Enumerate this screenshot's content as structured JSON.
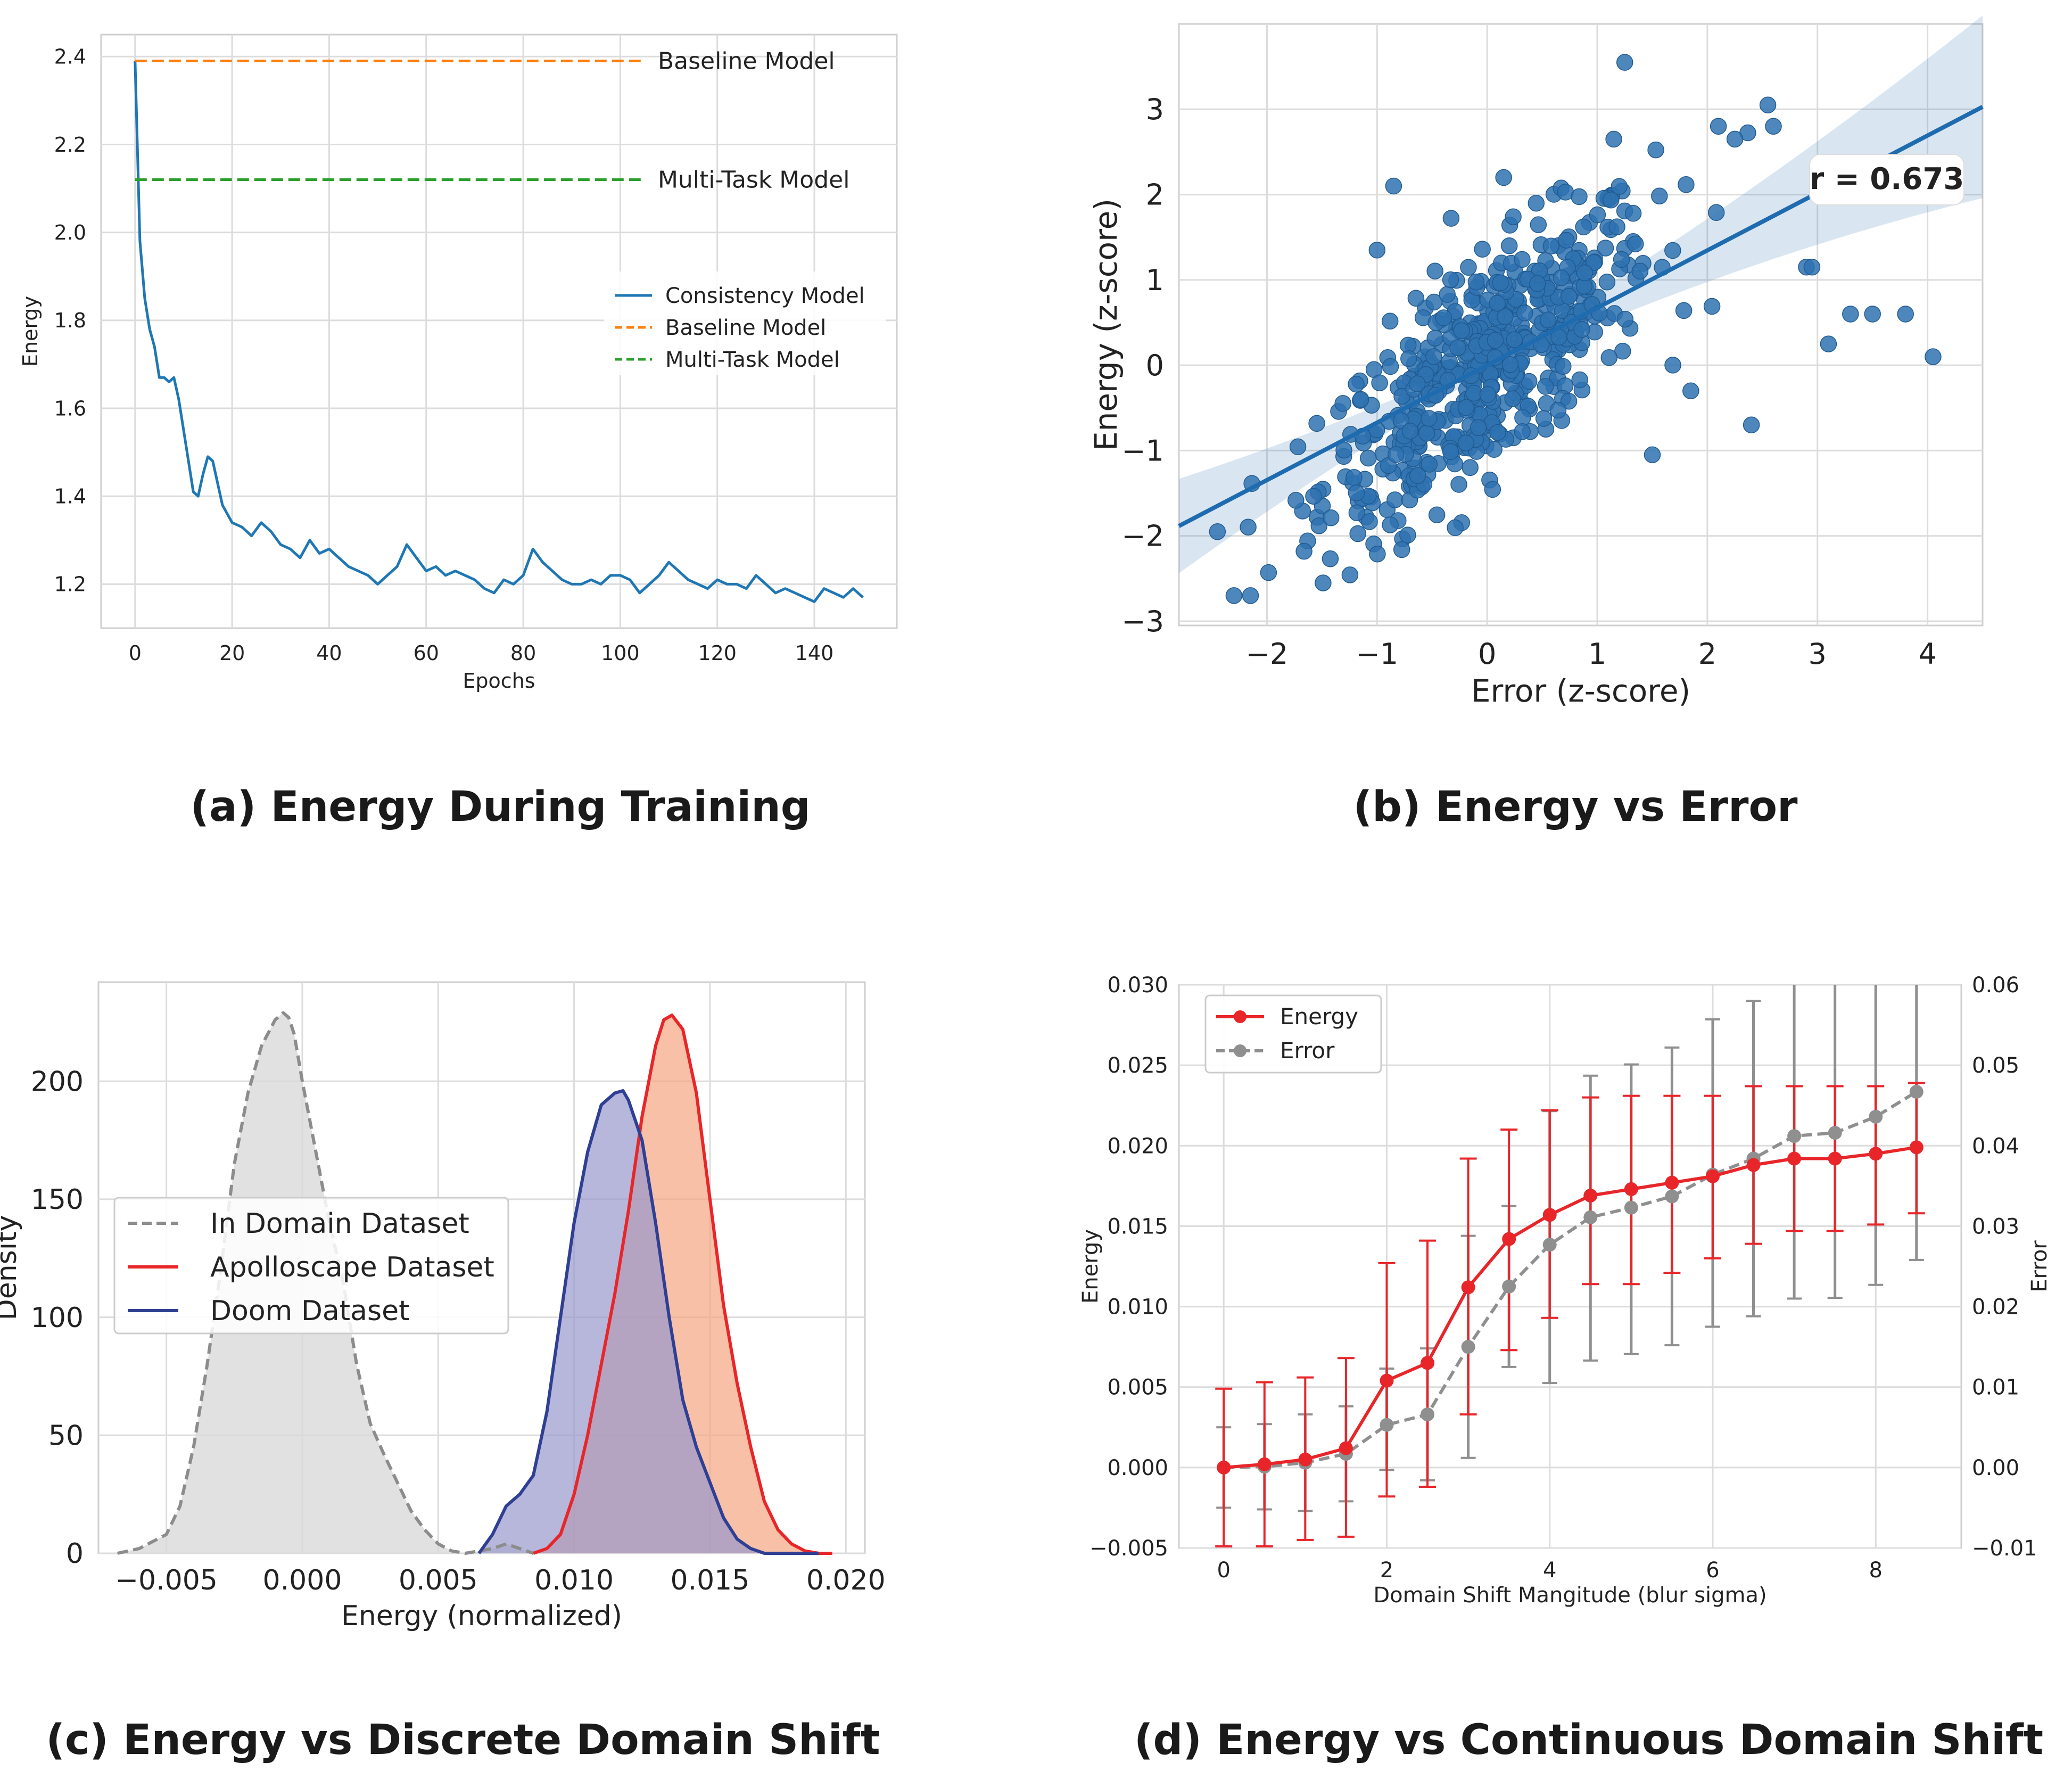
{
  "chart_data": [
    {
      "type": "line",
      "caption": "(a) Energy During Training",
      "xlabel": "Epochs",
      "ylabel": "Energy",
      "xlim": [
        -7,
        157
      ],
      "ylim": [
        1.1,
        2.45
      ],
      "xticks": [
        0,
        20,
        40,
        60,
        80,
        100,
        120,
        140
      ],
      "yticks": [
        1.2,
        1.4,
        1.6,
        1.8,
        2.0,
        2.2,
        2.4
      ],
      "xtick_labels": [
        "0",
        "20",
        "40",
        "60",
        "80",
        "100",
        "120",
        "140"
      ],
      "ytick_labels": [
        "1.2",
        "1.4",
        "1.6",
        "1.8",
        "2.0",
        "2.2",
        "2.4"
      ],
      "grid": true,
      "legend_position": "center-right",
      "series": [
        {
          "name": "Consistency Model",
          "color": "#1f77b4",
          "style": "solid",
          "x": [
            0,
            1,
            2,
            3,
            4,
            5,
            6,
            7,
            8,
            9,
            10,
            11,
            12,
            13,
            14,
            15,
            16,
            17,
            18,
            19,
            20,
            22,
            24,
            26,
            28,
            30,
            32,
            34,
            36,
            38,
            40,
            42,
            44,
            46,
            48,
            50,
            52,
            54,
            56,
            58,
            60,
            62,
            64,
            66,
            68,
            70,
            72,
            74,
            76,
            78,
            80,
            82,
            84,
            86,
            88,
            90,
            92,
            94,
            96,
            98,
            100,
            102,
            104,
            106,
            108,
            110,
            112,
            114,
            116,
            118,
            120,
            122,
            124,
            126,
            128,
            130,
            132,
            134,
            136,
            138,
            140,
            142,
            144,
            146,
            148,
            150
          ],
          "values": [
            2.39,
            1.98,
            1.85,
            1.78,
            1.74,
            1.67,
            1.67,
            1.66,
            1.67,
            1.62,
            1.55,
            1.48,
            1.41,
            1.4,
            1.45,
            1.49,
            1.48,
            1.43,
            1.38,
            1.36,
            1.34,
            1.33,
            1.31,
            1.34,
            1.32,
            1.29,
            1.28,
            1.26,
            1.3,
            1.27,
            1.28,
            1.26,
            1.24,
            1.23,
            1.22,
            1.2,
            1.22,
            1.24,
            1.29,
            1.26,
            1.23,
            1.24,
            1.22,
            1.23,
            1.22,
            1.21,
            1.19,
            1.18,
            1.21,
            1.2,
            1.22,
            1.28,
            1.25,
            1.23,
            1.21,
            1.2,
            1.2,
            1.21,
            1.2,
            1.22,
            1.22,
            1.21,
            1.18,
            1.2,
            1.22,
            1.25,
            1.23,
            1.21,
            1.2,
            1.19,
            1.21,
            1.2,
            1.2,
            1.19,
            1.22,
            1.2,
            1.18,
            1.19,
            1.18,
            1.17,
            1.16,
            1.19,
            1.18,
            1.17,
            1.19,
            1.17
          ]
        },
        {
          "name": "Baseline Model",
          "color": "#ff7f0e",
          "style": "dashed",
          "y": 2.39,
          "x_end": 105,
          "label": "Baseline Model"
        },
        {
          "name": "Multi-Task Model",
          "color": "#2ca02c",
          "style": "dashed",
          "y": 2.12,
          "x_end": 105,
          "label": "Multi-Task Model"
        }
      ]
    },
    {
      "type": "scatter",
      "caption": "(b) Energy vs Error",
      "xlabel": "Error (z-score)",
      "ylabel": "Energy (z-score)",
      "xlim": [
        -2.8,
        4.5
      ],
      "ylim": [
        -3.05,
        4.0
      ],
      "xticks": [
        -2,
        -1,
        0,
        1,
        2,
        3,
        4
      ],
      "yticks": [
        -3,
        -2,
        -1,
        0,
        1,
        2,
        3
      ],
      "xtick_labels": [
        "−2",
        "−1",
        "0",
        "1",
        "2",
        "3",
        "4"
      ],
      "ytick_labels": [
        "−3",
        "−2",
        "−1",
        "0",
        "1",
        "2",
        "3"
      ],
      "grid": true,
      "color": "#2f72b0",
      "regression": {
        "slope": 0.673,
        "intercept": 0.0
      },
      "annotation": "r = 0.673",
      "outliers": [
        [
          1.25,
          3.55
        ],
        [
          2.55,
          3.05
        ],
        [
          2.6,
          2.8
        ],
        [
          2.1,
          2.8
        ],
        [
          1.15,
          2.65
        ],
        [
          2.25,
          2.65
        ],
        [
          -0.85,
          2.1
        ],
        [
          3.1,
          0.25
        ],
        [
          3.3,
          0.6
        ],
        [
          3.5,
          0.6
        ],
        [
          3.8,
          0.6
        ],
        [
          4.05,
          0.1
        ],
        [
          2.4,
          -0.7
        ],
        [
          1.5,
          -1.05
        ],
        [
          -2.3,
          -2.7
        ],
        [
          -2.15,
          -2.7
        ],
        [
          -2.45,
          -1.95
        ],
        [
          -1.0,
          1.35
        ],
        [
          0.15,
          2.2
        ],
        [
          2.9,
          1.15
        ],
        [
          2.95,
          1.15
        ],
        [
          1.85,
          -0.3
        ]
      ]
    },
    {
      "type": "area",
      "caption": "(c) Energy vs Discrete Domain Shift",
      "xlabel": "Energy (normalized)",
      "ylabel": "Density",
      "xlim": [
        -0.0075,
        0.0207
      ],
      "ylim": [
        0,
        242
      ],
      "xticks": [
        -0.005,
        0.0,
        0.005,
        0.01,
        0.015,
        0.02
      ],
      "yticks": [
        0,
        50,
        100,
        150,
        200
      ],
      "xtick_labels": [
        "−0.005",
        "0.000",
        "0.005",
        "0.010",
        "0.015",
        "0.020"
      ],
      "ytick_labels": [
        "0",
        "50",
        "100",
        "150",
        "200"
      ],
      "grid": true,
      "legend_position": "center-left",
      "series": [
        {
          "name": "In Domain Dataset",
          "color": "#8c8c8c",
          "fill": "#d9d9d9",
          "style": "dashed",
          "x": [
            -0.0068,
            -0.006,
            -0.005,
            -0.0045,
            -0.004,
            -0.0035,
            -0.003,
            -0.0025,
            -0.002,
            -0.0015,
            -0.001,
            -0.0007,
            -0.0005,
            -0.0003,
            0.0,
            0.0005,
            0.001,
            0.0015,
            0.002,
            0.0025,
            0.003,
            0.0035,
            0.004,
            0.0045,
            0.005,
            0.0055,
            0.006,
            0.0065,
            0.007,
            0.0075,
            0.008,
            0.0085
          ],
          "values": [
            0,
            2,
            8,
            20,
            45,
            80,
            120,
            165,
            195,
            215,
            226,
            229,
            227,
            220,
            200,
            170,
            140,
            115,
            80,
            55,
            42,
            30,
            18,
            10,
            4,
            1,
            0,
            1,
            2,
            4,
            2,
            0
          ]
        },
        {
          "name": "Apolloscape Dataset",
          "color": "#e8262a",
          "fill": "#f4a582",
          "style": "solid",
          "x": [
            0.0085,
            0.009,
            0.0095,
            0.01,
            0.0105,
            0.011,
            0.0115,
            0.012,
            0.0125,
            0.013,
            0.0133,
            0.0136,
            0.014,
            0.0145,
            0.015,
            0.0155,
            0.016,
            0.0165,
            0.017,
            0.0175,
            0.018,
            0.0185,
            0.019,
            0.0195
          ],
          "values": [
            0,
            2,
            8,
            25,
            50,
            80,
            110,
            145,
            185,
            215,
            226,
            228,
            222,
            195,
            150,
            105,
            72,
            45,
            22,
            10,
            4,
            1,
            0,
            0
          ]
        },
        {
          "name": "Doom Dataset",
          "color": "#2e3f94",
          "fill": "#9999cc",
          "style": "solid",
          "x": [
            0.0065,
            0.007,
            0.0075,
            0.008,
            0.0085,
            0.009,
            0.0095,
            0.01,
            0.0105,
            0.011,
            0.0115,
            0.0118,
            0.012,
            0.0125,
            0.013,
            0.0135,
            0.014,
            0.0145,
            0.015,
            0.0155,
            0.016,
            0.0165,
            0.017,
            0.0175,
            0.018,
            0.0185,
            0.019
          ],
          "values": [
            0,
            8,
            20,
            25,
            33,
            60,
            100,
            140,
            170,
            190,
            195,
            196,
            192,
            175,
            140,
            100,
            65,
            45,
            30,
            15,
            6,
            2,
            0,
            0,
            0,
            0,
            0
          ]
        }
      ]
    },
    {
      "type": "line",
      "caption": "(d) Energy vs Continuous Domain Shift",
      "xlabel": "Domain Shift Mangitude (blur sigma)",
      "ylabel": "Energy",
      "ylabel_right": "Error",
      "xlim": [
        -0.55,
        9.05
      ],
      "ylim": [
        -0.005,
        0.03
      ],
      "ylim_right": [
        -0.01,
        0.06
      ],
      "xticks": [
        0,
        2,
        4,
        6,
        8
      ],
      "yticks": [
        -0.005,
        0.0,
        0.005,
        0.01,
        0.015,
        0.02,
        0.025,
        0.03
      ],
      "yticks_right": [
        -0.01,
        0.0,
        0.01,
        0.02,
        0.03,
        0.04,
        0.05,
        0.06
      ],
      "xtick_labels": [
        "0",
        "2",
        "4",
        "6",
        "8"
      ],
      "ytick_labels": [
        "−0.005",
        "0.000",
        "0.005",
        "0.010",
        "0.015",
        "0.020",
        "0.025",
        "0.030"
      ],
      "ytick_labels_right": [
        "−0.01",
        "0.00",
        "0.01",
        "0.02",
        "0.03",
        "0.04",
        "0.05",
        "0.06"
      ],
      "grid": true,
      "legend_position": "upper-left",
      "x": [
        0,
        0.5,
        1,
        1.5,
        2,
        2.5,
        3,
        3.5,
        4,
        4.5,
        5,
        5.5,
        6,
        6.5,
        7,
        7.5,
        8,
        8.5
      ],
      "series": [
        {
          "name": "Energy",
          "axis": "left",
          "color": "#e8262a",
          "style": "solid",
          "values": [
            0.0,
            0.0002,
            0.0005,
            0.0012,
            0.0054,
            0.0065,
            0.0112,
            0.0142,
            0.0157,
            0.0169,
            0.0173,
            0.0177,
            0.0181,
            0.0188,
            0.0192,
            0.0192,
            0.0195,
            0.0199
          ],
          "err_low": [
            -0.0049,
            -0.0049,
            -0.0045,
            -0.0043,
            -0.0018,
            -0.0012,
            0.0033,
            0.0073,
            0.0093,
            0.0114,
            0.0114,
            0.0121,
            0.013,
            0.0139,
            0.0147,
            0.0147,
            0.0151,
            0.0158
          ],
          "err_high": [
            0.0049,
            0.0053,
            0.0056,
            0.0068,
            0.0127,
            0.0141,
            0.0192,
            0.021,
            0.0222,
            0.023,
            0.0231,
            0.0231,
            0.0231,
            0.0237,
            0.0237,
            0.0237,
            0.0237,
            0.0239
          ]
        },
        {
          "name": "Error",
          "axis": "right",
          "color": "#8f8f8f",
          "style": "dashed",
          "values": [
            0.0,
            0.0001,
            0.0006,
            0.0017,
            0.0053,
            0.0066,
            0.015,
            0.0225,
            0.0277,
            0.0311,
            0.0323,
            0.0337,
            0.0364,
            0.0384,
            0.0412,
            0.0416,
            0.0436,
            0.0467
          ],
          "err_low": [
            -0.005,
            -0.0052,
            -0.0054,
            -0.0042,
            -0.0003,
            -0.0016,
            0.0012,
            0.0125,
            0.0105,
            0.0133,
            0.0141,
            0.0152,
            0.0175,
            0.0188,
            0.021,
            0.0211,
            0.0227,
            0.0258
          ],
          "err_high": [
            0.005,
            0.0054,
            0.0066,
            0.0076,
            0.0123,
            0.0148,
            0.0288,
            0.0325,
            0.0443,
            0.0487,
            0.0501,
            0.0522,
            0.0557,
            0.058,
            0.0614,
            0.0621,
            0.0645,
            0.0676
          ]
        }
      ]
    }
  ]
}
